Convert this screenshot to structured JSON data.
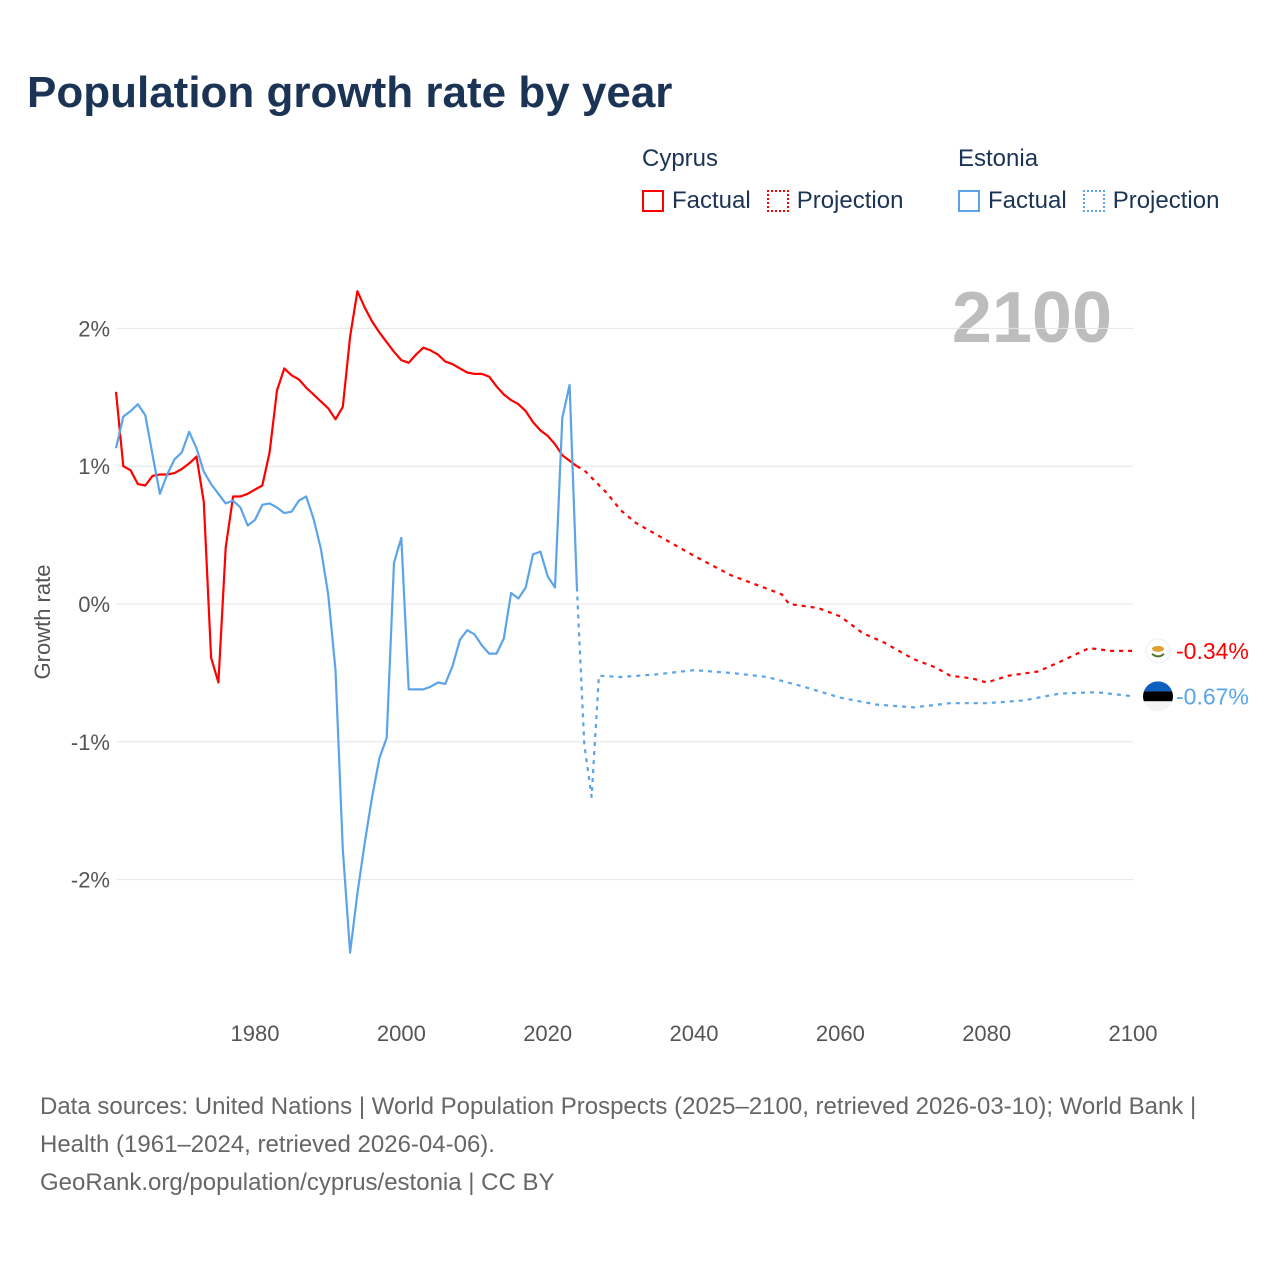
{
  "title": "Population growth rate by year",
  "legend": {
    "groups": [
      {
        "country": "Cyprus",
        "factual": "Factual",
        "projection": "Projection",
        "color": "#ff0000"
      },
      {
        "country": "Estonia",
        "factual": "Factual",
        "projection": "Projection",
        "color": "#5ba4ea"
      }
    ]
  },
  "year_display": "2100",
  "footer": {
    "sources": "Data sources: United Nations | World Population Prospects (2025–2100, retrieved 2026-03-10); World Bank | Health (1961–2024, retrieved 2026-04-06).",
    "link": "GeoRank.org/population/cyprus/estonia | CC BY"
  },
  "chart_data": {
    "type": "line",
    "title": "Population growth rate by year",
    "xlabel": "",
    "ylabel": "Growth rate",
    "xlim": [
      1961,
      2100
    ],
    "ylim": [
      -2.8,
      2.5
    ],
    "x_ticks": [
      "1980",
      "2000",
      "2020",
      "2040",
      "2060",
      "2080",
      "2100"
    ],
    "y_ticks": [
      {
        "value": 2,
        "label": "2%"
      },
      {
        "value": 1,
        "label": "1%"
      },
      {
        "value": 0,
        "label": "0%"
      },
      {
        "value": -1,
        "label": "-1%"
      },
      {
        "value": -2,
        "label": "-2%"
      }
    ],
    "grid": true,
    "legend_position": "top-right",
    "series": [
      {
        "name": "Cyprus Factual",
        "color": "#ff0000",
        "style": "solid",
        "x": [
          1961,
          1962,
          1963,
          1964,
          1965,
          1966,
          1967,
          1968,
          1969,
          1970,
          1971,
          1972,
          1973,
          1974,
          1975,
          1976,
          1977,
          1978,
          1979,
          1980,
          1981,
          1982,
          1983,
          1984,
          1985,
          1986,
          1987,
          1988,
          1989,
          1990,
          1991,
          1992,
          1993,
          1994,
          1995,
          1996,
          1997,
          1998,
          1999,
          2000,
          2001,
          2002,
          2003,
          2004,
          2005,
          2006,
          2007,
          2008,
          2009,
          2010,
          2011,
          2012,
          2013,
          2014,
          2015,
          2016,
          2017,
          2018,
          2019,
          2020,
          2021,
          2022,
          2023,
          2024
        ],
        "y": [
          1.54,
          1.0,
          0.97,
          0.87,
          0.86,
          0.93,
          0.94,
          0.94,
          0.95,
          0.98,
          1.02,
          1.07,
          0.74,
          -0.39,
          -0.57,
          0.41,
          0.78,
          0.78,
          0.8,
          0.83,
          0.86,
          1.1,
          1.55,
          1.71,
          1.66,
          1.63,
          1.57,
          1.52,
          1.47,
          1.42,
          1.34,
          1.43,
          1.94,
          2.27,
          2.15,
          2.05,
          1.97,
          1.9,
          1.83,
          1.77,
          1.75,
          1.81,
          1.86,
          1.84,
          1.81,
          1.76,
          1.74,
          1.71,
          1.68,
          1.67,
          1.67,
          1.65,
          1.58,
          1.52,
          1.48,
          1.45,
          1.4,
          1.32,
          1.26,
          1.22,
          1.16,
          1.08,
          1.04,
          1.0
        ]
      },
      {
        "name": "Cyprus Projection",
        "color": "#ff0000",
        "style": "dotted",
        "x": [
          2024,
          2025,
          2028,
          2030,
          2032,
          2035,
          2040,
          2045,
          2050,
          2052,
          2053,
          2057,
          2060,
          2063,
          2066,
          2070,
          2073,
          2075,
          2078,
          2080,
          2083,
          2087,
          2090,
          2094,
          2097,
          2100
        ],
        "y": [
          1.0,
          0.97,
          0.81,
          0.68,
          0.59,
          0.5,
          0.35,
          0.21,
          0.11,
          0.07,
          0.0,
          -0.03,
          -0.09,
          -0.21,
          -0.28,
          -0.4,
          -0.46,
          -0.52,
          -0.54,
          -0.57,
          -0.52,
          -0.49,
          -0.42,
          -0.32,
          -0.34,
          -0.34
        ]
      },
      {
        "name": "Estonia Factual",
        "color": "#5ba4ea",
        "style": "solid",
        "x": [
          1961,
          1962,
          1963,
          1964,
          1965,
          1966,
          1967,
          1968,
          1969,
          1970,
          1971,
          1972,
          1973,
          1974,
          1975,
          1976,
          1977,
          1978,
          1979,
          1980,
          1981,
          1982,
          1983,
          1984,
          1985,
          1986,
          1987,
          1988,
          1989,
          1990,
          1991,
          1992,
          1993,
          1994,
          1995,
          1996,
          1997,
          1998,
          1999,
          2000,
          2001,
          2002,
          2003,
          2004,
          2005,
          2006,
          2007,
          2008,
          2009,
          2010,
          2011,
          2012,
          2013,
          2014,
          2015,
          2016,
          2017,
          2018,
          2019,
          2020,
          2021,
          2022,
          2023,
          2024
        ],
        "y": [
          1.13,
          1.36,
          1.4,
          1.45,
          1.37,
          1.08,
          0.8,
          0.94,
          1.05,
          1.1,
          1.25,
          1.13,
          0.96,
          0.87,
          0.8,
          0.73,
          0.75,
          0.7,
          0.57,
          0.61,
          0.72,
          0.73,
          0.7,
          0.66,
          0.67,
          0.75,
          0.78,
          0.62,
          0.4,
          0.07,
          -0.48,
          -1.78,
          -2.53,
          -2.1,
          -1.73,
          -1.4,
          -1.12,
          -0.97,
          0.3,
          0.48,
          -0.62,
          -0.62,
          -0.62,
          -0.6,
          -0.57,
          -0.58,
          -0.45,
          -0.26,
          -0.19,
          -0.22,
          -0.3,
          -0.36,
          -0.36,
          -0.25,
          0.08,
          0.04,
          0.12,
          0.36,
          0.38,
          0.2,
          0.12,
          1.35,
          1.59,
          0.12
        ]
      },
      {
        "name": "Estonia Projection",
        "color": "#5ba4ea",
        "style": "dotted",
        "x": [
          2024,
          2025,
          2026,
          2027,
          2030,
          2035,
          2040,
          2045,
          2050,
          2055,
          2060,
          2065,
          2070,
          2075,
          2080,
          2085,
          2090,
          2095,
          2100
        ],
        "y": [
          0.12,
          -1.02,
          -1.4,
          -0.52,
          -0.53,
          -0.51,
          -0.48,
          -0.5,
          -0.53,
          -0.6,
          -0.68,
          -0.73,
          -0.75,
          -0.72,
          -0.72,
          -0.7,
          -0.65,
          -0.64,
          -0.67
        ]
      }
    ],
    "end_labels": [
      {
        "series": "Cyprus",
        "value": -0.34,
        "label": "-0.34%",
        "color": "#ff0000"
      },
      {
        "series": "Estonia",
        "value": -0.67,
        "label": "-0.67%",
        "color": "#5ba4ea"
      }
    ]
  }
}
